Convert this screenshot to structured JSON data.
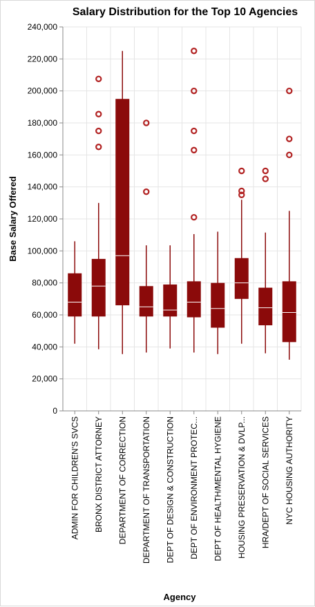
{
  "chart_data": {
    "type": "boxplot",
    "title": "Salary Distribution for the Top 10 Agencies",
    "xlabel": "Agency",
    "ylabel": "Base Salary Offered",
    "ylim": [
      0,
      240000
    ],
    "yticks": [
      0,
      20000,
      40000,
      60000,
      80000,
      100000,
      120000,
      140000,
      160000,
      180000,
      200000,
      220000,
      240000
    ],
    "ytick_labels": [
      "0",
      "20,000",
      "40,000",
      "60,000",
      "80,000",
      "100,000",
      "120,000",
      "140,000",
      "160,000",
      "180,000",
      "200,000",
      "220,000",
      "240,000"
    ],
    "grid": true,
    "color": "#8b0a0a",
    "outlier_color": "#b22222",
    "categories": [
      "ADMIN FOR CHILDREN'S SVCS",
      "BRONX DISTRICT ATTORNEY",
      "DEPARTMENT OF CORRECTION",
      "DEPARTMENT OF TRANSPORTATION",
      "DEPT OF DESIGN & CONSTRUCTION",
      "DEPT OF ENVIRONMENT PROTEC...",
      "DEPT OF HEALTH/MENTAL HYGIENE",
      "HOUSING PRESERVATION & DVLP...",
      "HRA/DEPT OF SOCIAL SERVICES",
      "NYC HOUSING AUTHORITY"
    ],
    "boxes": [
      {
        "min": 42000,
        "q1": 59000,
        "median": 68000,
        "q3": 86000,
        "max": 106000,
        "outliers": []
      },
      {
        "min": 38500,
        "q1": 59000,
        "median": 78000,
        "q3": 95000,
        "max": 130000,
        "outliers": [
          207500,
          185500,
          175000,
          165000
        ]
      },
      {
        "min": 35500,
        "q1": 66000,
        "median": 97000,
        "q3": 195000,
        "max": 225000,
        "outliers": []
      },
      {
        "min": 36500,
        "q1": 59000,
        "median": 65000,
        "q3": 78000,
        "max": 103500,
        "outliers": [
          180000,
          137000
        ]
      },
      {
        "min": 39000,
        "q1": 59000,
        "median": 63000,
        "q3": 79000,
        "max": 103500,
        "outliers": []
      },
      {
        "min": 36500,
        "q1": 58500,
        "median": 68000,
        "q3": 81000,
        "max": 110500,
        "outliers": [
          225000,
          200000,
          175000,
          163000,
          121000
        ]
      },
      {
        "min": 35500,
        "q1": 52000,
        "median": 64000,
        "q3": 80000,
        "max": 112000,
        "outliers": []
      },
      {
        "min": 42000,
        "q1": 70000,
        "median": 80000,
        "q3": 95500,
        "max": 132000,
        "outliers": [
          150000,
          137500,
          135000
        ]
      },
      {
        "min": 36000,
        "q1": 53500,
        "median": 64500,
        "q3": 77000,
        "max": 111500,
        "outliers": [
          150000,
          145000
        ]
      },
      {
        "min": 32000,
        "q1": 43000,
        "median": 61500,
        "q3": 81000,
        "max": 125000,
        "outliers": [
          200000,
          170000,
          160000
        ]
      }
    ]
  }
}
